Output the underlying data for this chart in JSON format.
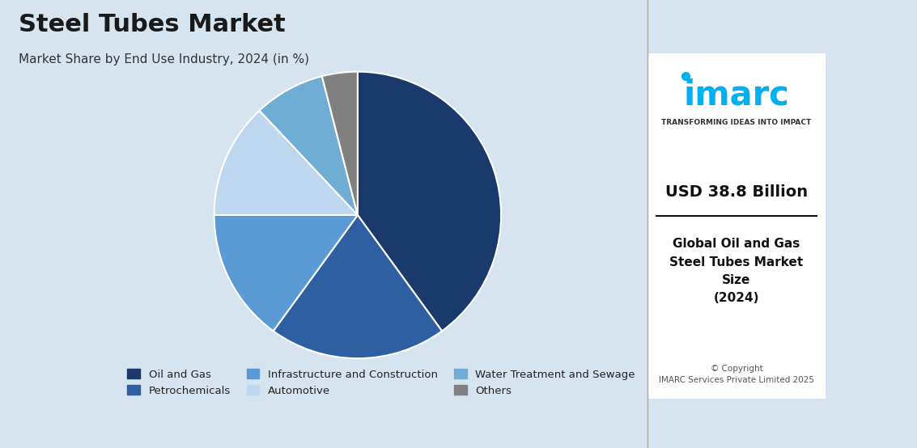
{
  "title": "Steel Tubes Market",
  "subtitle": "Market Share by End Use Industry, 2024 (in %)",
  "labels": [
    "Oil and Gas",
    "Petrochemicals",
    "Infrastructure and Construction",
    "Automotive",
    "Water Treatment and Sewage",
    "Others"
  ],
  "values": [
    40,
    20,
    15,
    13,
    8,
    4
  ],
  "colors": [
    "#1a3a6b",
    "#2e5fa3",
    "#5b9bd5",
    "#bdd7ee",
    "#70add4",
    "#808080"
  ],
  "bg_color": "#d6e4f0",
  "right_panel_bg": "#ffffff",
  "usd_text": "USD 38.8 Billion",
  "desc_text": "Global Oil and Gas\nSteel Tubes Market\nSize\n(2024)",
  "copyright_text": "© Copyright\nIMARC Services Private Limited 2025",
  "imarc_tagline": "TRANSFORMING IDEAS INTO IMPACT",
  "startangle": 90
}
